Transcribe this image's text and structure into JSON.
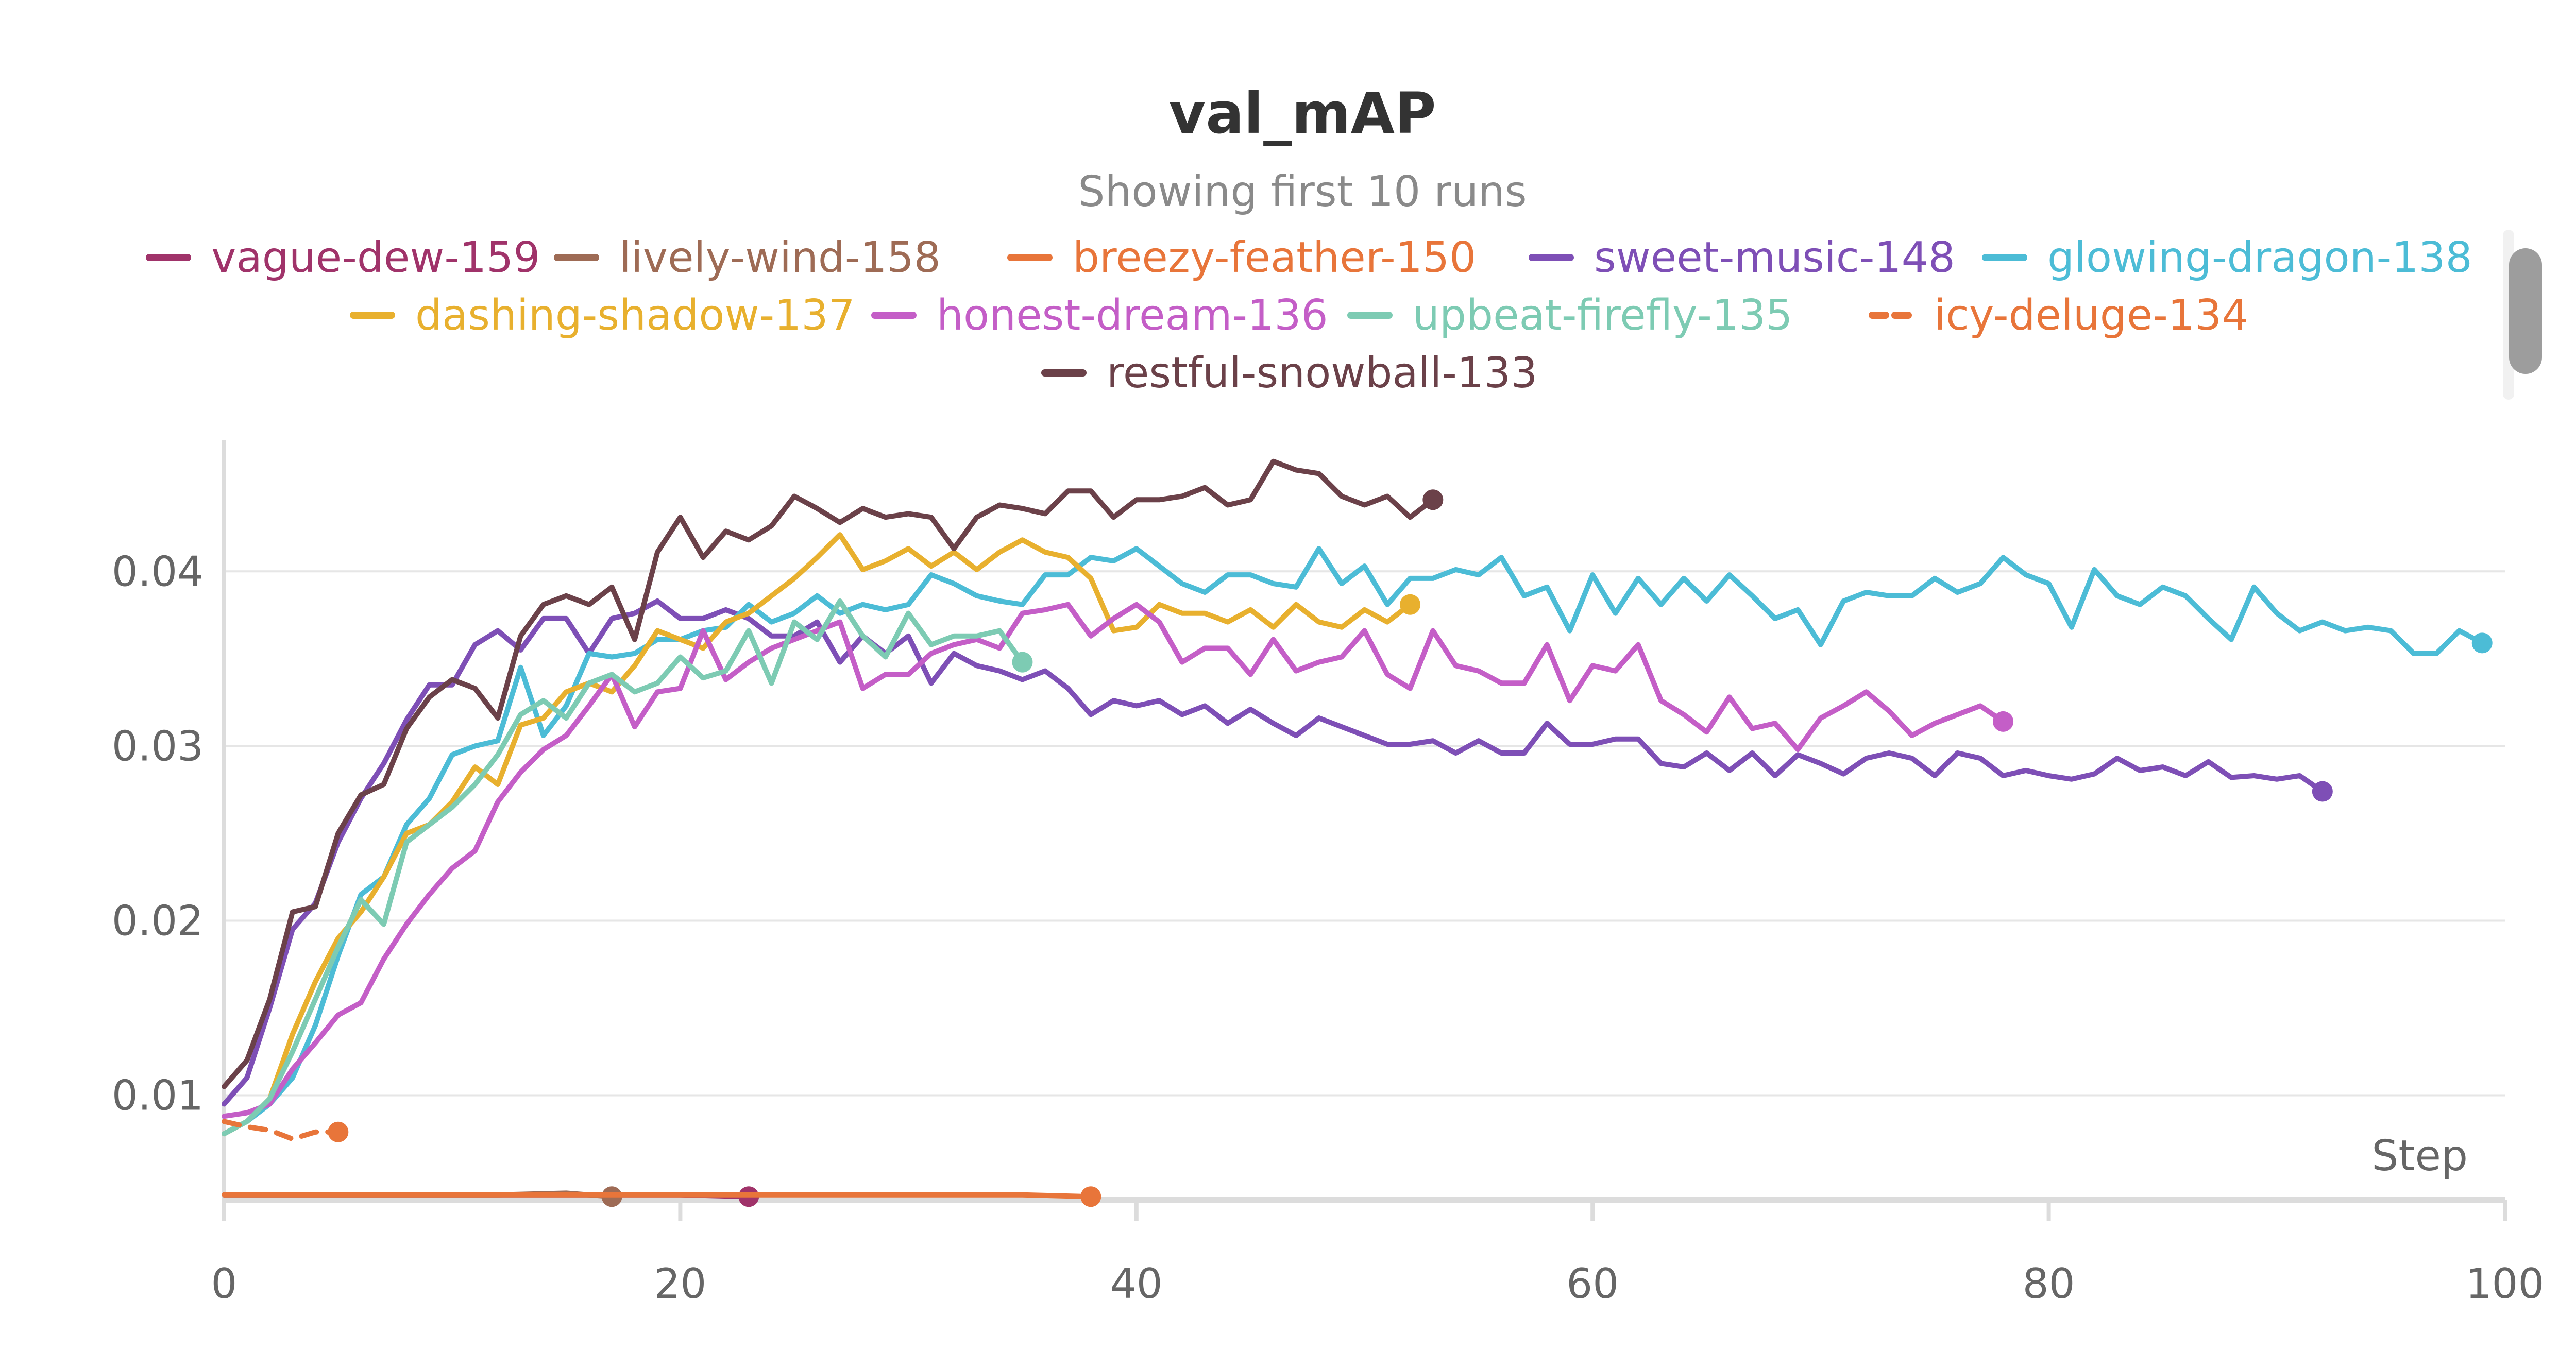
{
  "chart_data": {
    "type": "line",
    "title": "val_mAP",
    "subtitle": "Showing first 10 runs",
    "xlabel": "Step",
    "ylabel": "",
    "xlim": [
      0,
      100
    ],
    "ylim": [
      0.004,
      0.0475
    ],
    "x_ticks": [
      "0",
      "20",
      "40",
      "60",
      "80",
      "100"
    ],
    "y_ticks": [
      "0.01",
      "0.02",
      "0.03",
      "0.04"
    ],
    "grid": "horizontal",
    "legend_position": "top",
    "series": [
      {
        "name": "vague-dew-159",
        "color": "#a0336a",
        "dash": false,
        "x": [
          0,
          4,
          8,
          12,
          16,
          20,
          23
        ],
        "y": [
          0.0043,
          0.0043,
          0.0043,
          0.0043,
          0.0043,
          0.0043,
          0.0042
        ]
      },
      {
        "name": "lively-wind-158",
        "color": "#9e6b55",
        "dash": false,
        "x": [
          0,
          3,
          6,
          9,
          12,
          15,
          17
        ],
        "y": [
          0.0043,
          0.0043,
          0.0043,
          0.0043,
          0.0043,
          0.0044,
          0.0042
        ]
      },
      {
        "name": "breezy-feather-150",
        "color": "#e8753a",
        "dash": false,
        "x": [
          0,
          5,
          10,
          15,
          20,
          25,
          30,
          35,
          38
        ],
        "y": [
          0.0043,
          0.0043,
          0.0043,
          0.0043,
          0.0043,
          0.0043,
          0.0043,
          0.0043,
          0.0042
        ]
      },
      {
        "name": "sweet-music-148",
        "color": "#7e4fb6",
        "dash": false,
        "x": [
          0,
          1,
          2,
          3,
          4,
          5,
          6,
          7,
          8,
          9,
          10,
          11,
          12,
          13,
          14,
          15,
          16,
          17,
          18,
          19,
          20,
          21,
          22,
          23,
          24,
          25,
          26,
          27,
          28,
          29,
          30,
          31,
          32,
          33,
          34,
          35,
          36,
          37,
          38,
          39,
          40,
          41,
          42,
          43,
          44,
          45,
          46,
          47,
          48,
          49,
          50,
          51,
          52,
          53,
          54,
          55,
          56,
          57,
          58,
          59,
          60,
          61,
          62,
          63,
          64,
          65,
          66,
          67,
          68,
          69,
          70,
          71,
          72,
          73,
          74,
          75,
          76,
          77,
          78,
          79,
          80,
          81,
          82,
          83,
          84,
          85,
          86,
          87,
          88,
          89,
          90,
          91,
          92
        ],
        "y": [
          0.0095,
          0.011,
          0.015,
          0.0195,
          0.021,
          0.0245,
          0.027,
          0.029,
          0.0315,
          0.0335,
          0.0335,
          0.0358,
          0.0366,
          0.0355,
          0.0373,
          0.0373,
          0.0353,
          0.0373,
          0.0376,
          0.0383,
          0.0373,
          0.0373,
          0.0378,
          0.0373,
          0.0363,
          0.0363,
          0.0371,
          0.0348,
          0.0363,
          0.0353,
          0.0363,
          0.0336,
          0.0353,
          0.0346,
          0.0343,
          0.0338,
          0.0343,
          0.0333,
          0.0318,
          0.0326,
          0.0323,
          0.0326,
          0.0318,
          0.0323,
          0.0313,
          0.0321,
          0.0313,
          0.0306,
          0.0316,
          0.0311,
          0.0306,
          0.0301,
          0.0301,
          0.0303,
          0.0296,
          0.0303,
          0.0296,
          0.0296,
          0.0313,
          0.0301,
          0.0301,
          0.0304,
          0.0304,
          0.029,
          0.0288,
          0.0296,
          0.0286,
          0.0296,
          0.0283,
          0.0295,
          0.029,
          0.0284,
          0.0293,
          0.0296,
          0.0293,
          0.0283,
          0.0296,
          0.0293,
          0.0283,
          0.0286,
          0.0283,
          0.0281,
          0.0284,
          0.0293,
          0.0286,
          0.0288,
          0.0283,
          0.0291,
          0.0282,
          0.0283,
          0.0281,
          0.0283,
          0.0274
        ]
      },
      {
        "name": "glowing-dragon-138",
        "color": "#4cbcd6",
        "dash": false,
        "x": [
          0,
          1,
          2,
          3,
          4,
          5,
          6,
          7,
          8,
          9,
          10,
          11,
          12,
          13,
          14,
          15,
          16,
          17,
          18,
          19,
          20,
          21,
          22,
          23,
          24,
          25,
          26,
          27,
          28,
          29,
          30,
          31,
          32,
          33,
          34,
          35,
          36,
          37,
          38,
          39,
          40,
          41,
          42,
          43,
          44,
          45,
          46,
          47,
          48,
          49,
          50,
          51,
          52,
          53,
          54,
          55,
          56,
          57,
          58,
          59,
          60,
          61,
          62,
          63,
          64,
          65,
          66,
          67,
          68,
          69,
          70,
          71,
          72,
          73,
          74,
          75,
          76,
          77,
          78,
          79,
          80,
          81,
          82,
          83,
          84,
          85,
          86,
          87,
          88,
          89,
          90,
          91,
          92,
          93,
          94,
          95,
          96,
          97,
          98,
          99
        ],
        "y": [
          0.0078,
          0.0085,
          0.0095,
          0.011,
          0.014,
          0.018,
          0.0215,
          0.0225,
          0.0255,
          0.027,
          0.0295,
          0.03,
          0.0303,
          0.0345,
          0.0306,
          0.0323,
          0.0353,
          0.0351,
          0.0353,
          0.0361,
          0.0361,
          0.0366,
          0.0368,
          0.0381,
          0.0371,
          0.0376,
          0.0386,
          0.0376,
          0.0381,
          0.0378,
          0.0381,
          0.0398,
          0.0393,
          0.0386,
          0.0383,
          0.0381,
          0.0398,
          0.0398,
          0.0408,
          0.0406,
          0.0413,
          0.0403,
          0.0393,
          0.0388,
          0.0398,
          0.0398,
          0.0393,
          0.0391,
          0.0413,
          0.0393,
          0.0403,
          0.0381,
          0.0396,
          0.0396,
          0.0401,
          0.0398,
          0.0408,
          0.0386,
          0.0391,
          0.0366,
          0.0398,
          0.0376,
          0.0396,
          0.0381,
          0.0396,
          0.0383,
          0.0398,
          0.0386,
          0.0373,
          0.0378,
          0.0358,
          0.0383,
          0.0388,
          0.0386,
          0.0386,
          0.0396,
          0.0388,
          0.0393,
          0.0408,
          0.0398,
          0.0393,
          0.0368,
          0.0401,
          0.0386,
          0.0381,
          0.0391,
          0.0386,
          0.0373,
          0.0361,
          0.0391,
          0.0376,
          0.0366,
          0.0371,
          0.0366,
          0.0368,
          0.0366,
          0.0353,
          0.0353,
          0.0366,
          0.0359
        ]
      },
      {
        "name": "dashing-shadow-137",
        "color": "#e8b02e",
        "dash": false,
        "x": [
          0,
          1,
          2,
          3,
          4,
          5,
          6,
          7,
          8,
          9,
          10,
          11,
          12,
          13,
          14,
          15,
          16,
          17,
          18,
          19,
          20,
          21,
          22,
          23,
          24,
          25,
          26,
          27,
          28,
          29,
          30,
          31,
          32,
          33,
          34,
          35,
          36,
          37,
          38,
          39,
          40,
          41,
          42,
          43,
          44,
          45,
          46,
          47,
          48,
          49,
          50,
          51,
          52
        ],
        "y": [
          0.0078,
          0.0085,
          0.0098,
          0.0135,
          0.0165,
          0.019,
          0.0205,
          0.0225,
          0.025,
          0.0255,
          0.0268,
          0.0288,
          0.0278,
          0.0312,
          0.0316,
          0.0331,
          0.0336,
          0.0331,
          0.0346,
          0.0366,
          0.0361,
          0.0356,
          0.0371,
          0.0376,
          0.0386,
          0.0396,
          0.0408,
          0.0421,
          0.0401,
          0.0406,
          0.0413,
          0.0403,
          0.0411,
          0.0401,
          0.0411,
          0.0418,
          0.0411,
          0.0408,
          0.0396,
          0.0366,
          0.0368,
          0.0381,
          0.0376,
          0.0376,
          0.0371,
          0.0378,
          0.0368,
          0.0381,
          0.0371,
          0.0368,
          0.0378,
          0.0371,
          0.0381
        ]
      },
      {
        "name": "honest-dream-136",
        "color": "#c45ec7",
        "dash": false,
        "x": [
          0,
          1,
          2,
          3,
          4,
          5,
          6,
          7,
          8,
          9,
          10,
          11,
          12,
          13,
          14,
          15,
          16,
          17,
          18,
          19,
          20,
          21,
          22,
          23,
          24,
          25,
          26,
          27,
          28,
          29,
          30,
          31,
          32,
          33,
          34,
          35,
          36,
          37,
          38,
          39,
          40,
          41,
          42,
          43,
          44,
          45,
          46,
          47,
          48,
          49,
          50,
          51,
          52,
          53,
          54,
          55,
          56,
          57,
          58,
          59,
          60,
          61,
          62,
          63,
          64,
          65,
          66,
          67,
          68,
          69,
          70,
          71,
          72,
          73,
          74,
          75,
          76,
          77,
          78
        ],
        "y": [
          0.0088,
          0.009,
          0.0095,
          0.0115,
          0.013,
          0.0146,
          0.0153,
          0.0178,
          0.0198,
          0.0215,
          0.023,
          0.024,
          0.0268,
          0.0285,
          0.0298,
          0.0306,
          0.0323,
          0.0341,
          0.0311,
          0.0331,
          0.0333,
          0.0366,
          0.0338,
          0.0348,
          0.0356,
          0.0361,
          0.0366,
          0.0371,
          0.0333,
          0.0341,
          0.0341,
          0.0353,
          0.0358,
          0.0361,
          0.0356,
          0.0376,
          0.0378,
          0.0381,
          0.0363,
          0.0373,
          0.0381,
          0.0371,
          0.0348,
          0.0356,
          0.0356,
          0.0341,
          0.0361,
          0.0343,
          0.0348,
          0.0351,
          0.0366,
          0.0341,
          0.0333,
          0.0366,
          0.0346,
          0.0343,
          0.0336,
          0.0336,
          0.0358,
          0.0326,
          0.0346,
          0.0343,
          0.0358,
          0.0326,
          0.0318,
          0.0308,
          0.0328,
          0.031,
          0.0313,
          0.0298,
          0.0316,
          0.0323,
          0.0331,
          0.032,
          0.0306,
          0.0313,
          0.0318,
          0.0323,
          0.0314
        ]
      },
      {
        "name": "upbeat-firefly-135",
        "color": "#7dcbb3",
        "dash": false,
        "x": [
          0,
          1,
          2,
          3,
          4,
          5,
          6,
          7,
          8,
          9,
          10,
          11,
          12,
          13,
          14,
          15,
          16,
          17,
          18,
          19,
          20,
          21,
          22,
          23,
          24,
          25,
          26,
          27,
          28,
          29,
          30,
          31,
          32,
          33,
          34,
          35
        ],
        "y": [
          0.0078,
          0.0085,
          0.0098,
          0.0125,
          0.0155,
          0.0185,
          0.0212,
          0.0198,
          0.0245,
          0.0255,
          0.0265,
          0.0278,
          0.0295,
          0.0318,
          0.0326,
          0.0316,
          0.0336,
          0.0341,
          0.0331,
          0.0336,
          0.0351,
          0.0339,
          0.0343,
          0.0366,
          0.0336,
          0.0371,
          0.0361,
          0.0383,
          0.0363,
          0.0351,
          0.0376,
          0.0358,
          0.0363,
          0.0363,
          0.0366,
          0.0348
        ]
      },
      {
        "name": "icy-deluge-134",
        "color": "#e8753a",
        "dash": true,
        "x": [
          0,
          1,
          2,
          3,
          4,
          5
        ],
        "y": [
          0.0085,
          0.0082,
          0.008,
          0.0075,
          0.0079,
          0.0079
        ]
      },
      {
        "name": "restful-snowball-133",
        "color": "#6b4149",
        "dash": false,
        "x": [
          0,
          1,
          2,
          3,
          4,
          5,
          6,
          7,
          8,
          9,
          10,
          11,
          12,
          13,
          14,
          15,
          16,
          17,
          18,
          19,
          20,
          21,
          22,
          23,
          24,
          25,
          26,
          27,
          28,
          29,
          30,
          31,
          32,
          33,
          34,
          35,
          36,
          37,
          38,
          39,
          40,
          41,
          42,
          43,
          44,
          45,
          46,
          47,
          48,
          49,
          50,
          51,
          52,
          53
        ],
        "y": [
          0.0105,
          0.012,
          0.0155,
          0.0205,
          0.0208,
          0.025,
          0.0272,
          0.0278,
          0.031,
          0.0328,
          0.0338,
          0.0333,
          0.0316,
          0.0363,
          0.0381,
          0.0386,
          0.0381,
          0.0391,
          0.0361,
          0.0411,
          0.0431,
          0.0408,
          0.0423,
          0.0418,
          0.0426,
          0.0443,
          0.0436,
          0.0428,
          0.0436,
          0.0431,
          0.0433,
          0.0431,
          0.0413,
          0.0431,
          0.0438,
          0.0436,
          0.0433,
          0.0446,
          0.0446,
          0.0431,
          0.0441,
          0.0441,
          0.0443,
          0.0448,
          0.0438,
          0.0441,
          0.0463,
          0.0458,
          0.0456,
          0.0443,
          0.0438,
          0.0443,
          0.0431,
          0.0441
        ]
      }
    ]
  }
}
